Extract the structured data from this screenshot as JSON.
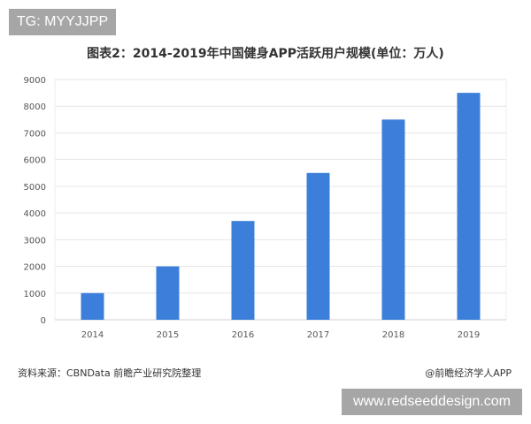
{
  "watermark_tag": "TG: MYYJJPP",
  "source": "资料来源：CBNData 前瞻产业研究院整理",
  "credit": "@前瞻经济学人APP",
  "site_watermark": "www.redseeddesign.com",
  "chart_data": {
    "type": "bar",
    "title": "图表2：2014-2019年中国健身APP活跃用户规模(单位：万人)",
    "categories": [
      "2014",
      "2015",
      "2016",
      "2017",
      "2018",
      "2019"
    ],
    "values": [
      1000,
      2000,
      3700,
      5500,
      7500,
      8500
    ],
    "yticks": [
      "0",
      "1000",
      "2000",
      "3000",
      "4000",
      "5000",
      "6000",
      "7000",
      "8000",
      "9000"
    ],
    "ylim": [
      0,
      9000
    ],
    "grid": true,
    "bar_color": "#3c7fdb",
    "xlabel": "",
    "ylabel": ""
  }
}
